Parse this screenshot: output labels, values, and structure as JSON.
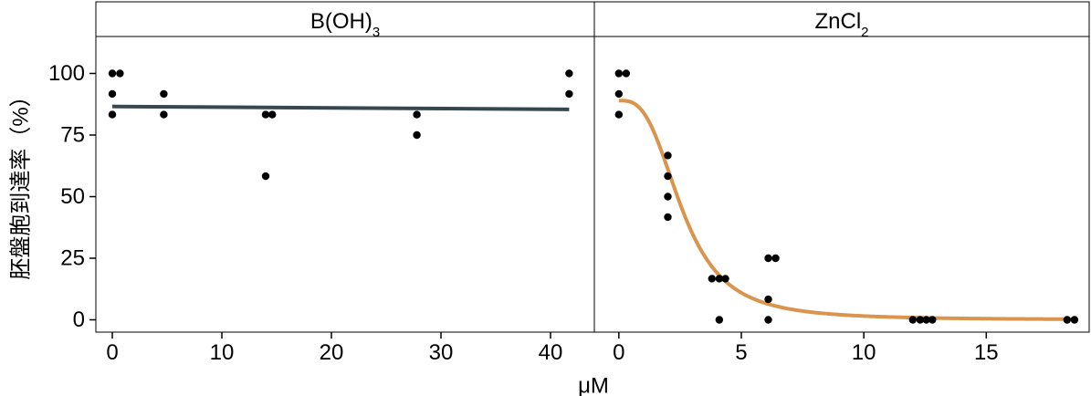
{
  "chart_data": {
    "type": "scatter",
    "ylabel": "胚盤胞到達率（%）",
    "xlabel": "μM",
    "ylim": [
      -5,
      115
    ],
    "yticks": [
      0,
      25,
      50,
      75,
      100
    ],
    "colors": {
      "points": "#000000",
      "boron_fit": "#37474f",
      "zinc_fit": "#d9944e"
    },
    "panels": [
      {
        "id": "boric-acid",
        "title_main": "B(OH)",
        "title_sub": "3",
        "xlim": [
          -1.5,
          44
        ],
        "xticks": [
          0,
          10,
          20,
          30,
          40
        ],
        "points": [
          {
            "x": 0,
            "y": 100
          },
          {
            "x": 0.7,
            "y": 100
          },
          {
            "x": 0,
            "y": 91.7
          },
          {
            "x": 0,
            "y": 83.3
          },
          {
            "x": 4.7,
            "y": 91.7
          },
          {
            "x": 4.7,
            "y": 83.3
          },
          {
            "x": 14,
            "y": 83.3
          },
          {
            "x": 14.6,
            "y": 83.3
          },
          {
            "x": 14,
            "y": 58.3
          },
          {
            "x": 27.8,
            "y": 83.3
          },
          {
            "x": 27.8,
            "y": 75
          },
          {
            "x": 41.7,
            "y": 100
          },
          {
            "x": 41.7,
            "y": 91.7
          }
        ],
        "fit": {
          "kind": "linear",
          "x": [
            0,
            41.7
          ],
          "y": [
            86.6,
            85.4
          ]
        }
      },
      {
        "id": "zinc-chloride",
        "title_main": "ZnCl",
        "title_sub": "2",
        "xlim": [
          -1,
          19.2
        ],
        "xticks": [
          0,
          5,
          10,
          15
        ],
        "points": [
          {
            "x": 0,
            "y": 100
          },
          {
            "x": 0.3,
            "y": 100
          },
          {
            "x": 0,
            "y": 91.7
          },
          {
            "x": 0,
            "y": 83.3
          },
          {
            "x": 2,
            "y": 66.7
          },
          {
            "x": 2,
            "y": 58.3
          },
          {
            "x": 2,
            "y": 50
          },
          {
            "x": 2,
            "y": 41.7
          },
          {
            "x": 3.8,
            "y": 16.7
          },
          {
            "x": 4.1,
            "y": 16.7
          },
          {
            "x": 4.35,
            "y": 16.7
          },
          {
            "x": 4.1,
            "y": 0
          },
          {
            "x": 6.1,
            "y": 25
          },
          {
            "x": 6.4,
            "y": 25
          },
          {
            "x": 6.1,
            "y": 8.3
          },
          {
            "x": 6.1,
            "y": 0
          },
          {
            "x": 12,
            "y": 0
          },
          {
            "x": 12.3,
            "y": 0
          },
          {
            "x": 12.55,
            "y": 0
          },
          {
            "x": 12.8,
            "y": 0
          },
          {
            "x": 18.3,
            "y": 0
          },
          {
            "x": 18.6,
            "y": 0
          }
        ],
        "fit": {
          "kind": "logistic",
          "top": 89,
          "ec50": 2.6,
          "hill": 3.0,
          "xmax": 18.6
        }
      }
    ]
  }
}
